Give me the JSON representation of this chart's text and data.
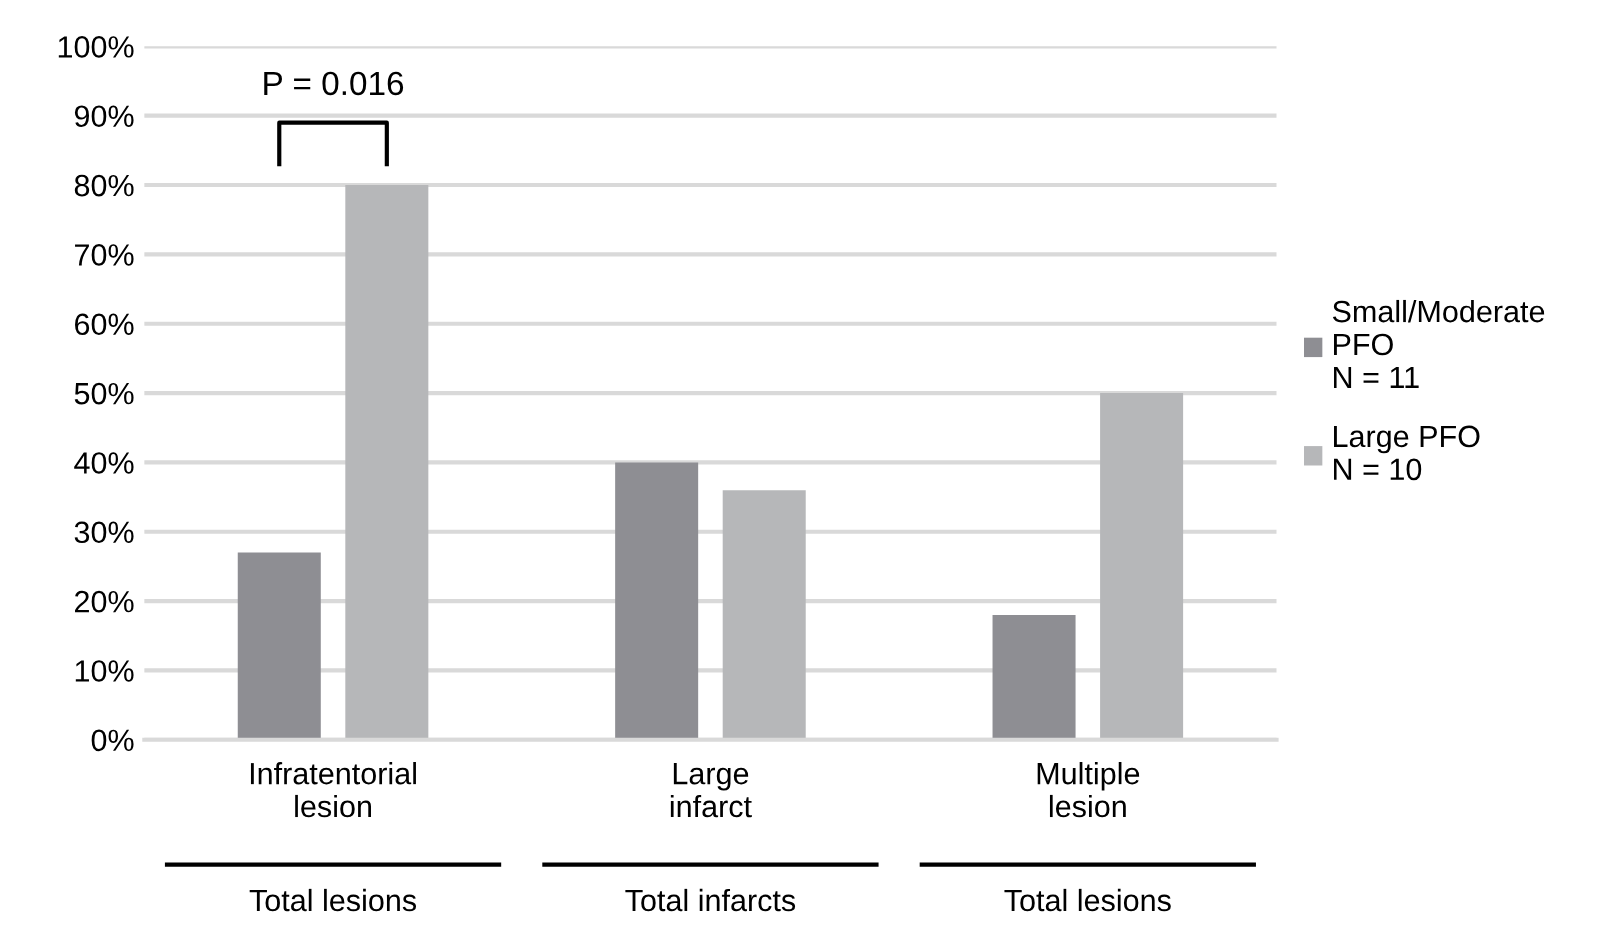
{
  "chart_data": {
    "type": "bar",
    "categories": [
      "Infratentorial\nlesion",
      "Large\ninfarct",
      "Multiple\nlesion"
    ],
    "series": [
      {
        "name": "Small/Moderate\nPFO\nN = 11",
        "color": "#8e8e93",
        "values": [
          27,
          40,
          18
        ]
      },
      {
        "name": "Large PFO\nN = 10",
        "color": "#b6b7b9",
        "values": [
          80,
          36,
          50
        ]
      }
    ],
    "ylim": [
      0,
      100
    ],
    "yticks": [
      {
        "value": 0,
        "label": "0%"
      },
      {
        "value": 10,
        "label": "10%"
      },
      {
        "value": 20,
        "label": "20%"
      },
      {
        "value": 30,
        "label": "30%"
      },
      {
        "value": 40,
        "label": "40%"
      },
      {
        "value": 50,
        "label": "50%"
      },
      {
        "value": 60,
        "label": "60%"
      },
      {
        "value": 70,
        "label": "70%"
      },
      {
        "value": 80,
        "label": "80%"
      },
      {
        "value": 90,
        "label": "90%"
      },
      {
        "value": 100,
        "label": "100%"
      }
    ],
    "grid": "y",
    "legend": "right",
    "annotations": [
      "P = 0.016",
      "Total lesions",
      "Total infarcts",
      "Total lesions"
    ]
  }
}
